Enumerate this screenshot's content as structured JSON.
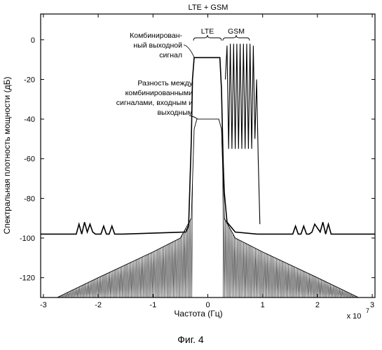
{
  "figure_caption": "Фиг. 4",
  "chart_data": {
    "type": "line",
    "title": "LTE + GSM",
    "xlabel": "Частота (Гц)",
    "ylabel": "Спектральная плотность мощности (дБ)",
    "x_multiplier_label": "x 10",
    "x_multiplier_exponent": "7",
    "xlim": [
      -3.05,
      3.05
    ],
    "ylim": [
      -130,
      13
    ],
    "x_ticks": [
      -3,
      -2,
      -1,
      0,
      1,
      2,
      3
    ],
    "y_ticks": [
      0,
      -20,
      -40,
      -60,
      -80,
      -100,
      -120
    ],
    "x_tick_labels": [
      "-3",
      "-2",
      "-1",
      "0",
      "1",
      "2",
      "3"
    ],
    "y_tick_labels": [
      "0",
      "-20",
      "-40",
      "-60",
      "-80",
      "-100",
      "-120"
    ],
    "grid": false,
    "annotations": {
      "combined_output": [
        "Комбинирован-",
        "ный выходной",
        "сигнал"
      ],
      "difference": [
        "Разность между",
        "комбинированными",
        "сигналами, входным и",
        "выходным"
      ],
      "lte_label": "LTE",
      "gsm_label": "GSM"
    },
    "series": [
      {
        "role": "combined_output",
        "x": [
          -3.05,
          -2.4,
          -2.35,
          -2.3,
          -2.25,
          -2.2,
          -2.15,
          -2.1,
          -2.05,
          -1.95,
          -1.9,
          -1.85,
          -1.8,
          -1.75,
          -1.7,
          -1.65,
          -1.6,
          -1.55,
          -0.4,
          -0.35,
          -0.3,
          -0.28,
          -0.25,
          0.22,
          0.25,
          0.28,
          0.3,
          0.35,
          0.5,
          0.9,
          0.95,
          1.0,
          1.05,
          1.55,
          1.6,
          1.65,
          1.7,
          1.75,
          1.8,
          1.85,
          1.9,
          1.95,
          2.05,
          2.1,
          2.15,
          2.2,
          2.25,
          2.3,
          2.35,
          2.4,
          3.05
        ],
        "y": [
          -98,
          -98,
          -93,
          -98,
          -92,
          -97,
          -93,
          -97,
          -98,
          -98,
          -94,
          -98,
          -98,
          -94,
          -98,
          -98,
          -98,
          -98,
          -97,
          -94,
          -50,
          -20,
          -9,
          -9,
          -25,
          -62,
          -77,
          -92,
          -97,
          -98,
          -98,
          -98,
          -98,
          -98,
          -94,
          -98,
          -98,
          -94,
          -98,
          -98,
          -97,
          -93,
          -97,
          -92,
          -98,
          -93,
          -98,
          -98,
          -98,
          -98,
          -98
        ]
      },
      {
        "role": "gsm_carriers",
        "x": [
          0.32,
          0.35,
          0.38,
          0.41,
          0.44,
          0.47,
          0.5,
          0.53,
          0.56,
          0.59,
          0.62,
          0.65,
          0.68,
          0.71,
          0.74,
          0.77,
          0.8,
          0.83,
          0.86,
          0.89,
          0.92,
          0.95
        ],
        "y": [
          -20,
          -3,
          -55,
          -2,
          -55,
          -2,
          -55,
          -2,
          -55,
          -2,
          -55,
          -2,
          -55,
          -2,
          -55,
          -2,
          -55,
          -3,
          -50,
          -20,
          -60,
          -93
        ]
      },
      {
        "role": "difference",
        "x": [
          -2.75,
          -2.0,
          -1.0,
          -0.5,
          -0.3,
          -0.25,
          -0.2,
          0.2,
          0.25,
          0.3,
          0.5,
          1.0,
          2.0,
          2.75
        ],
        "y": [
          -130,
          -120,
          -107,
          -100,
          -90,
          -45,
          -40,
          -40,
          -45,
          -90,
          -100,
          -107,
          -120,
          -130
        ]
      }
    ]
  }
}
